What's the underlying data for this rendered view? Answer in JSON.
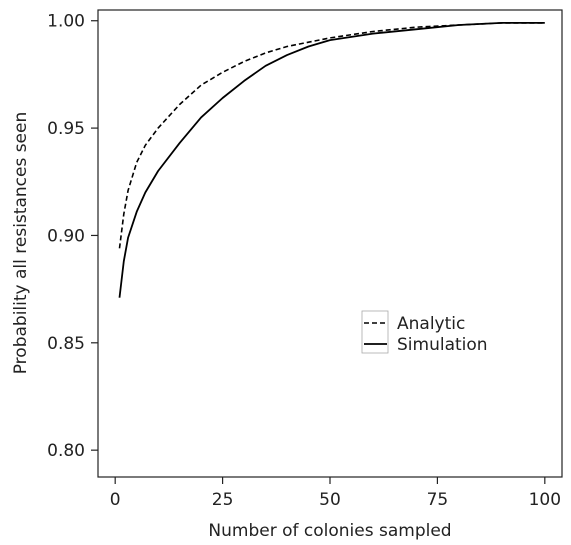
{
  "chart_data": {
    "type": "line",
    "title": "",
    "xlabel": "Number of colonies sampled",
    "ylabel": "Probability all resistances seen",
    "xlim": [
      -4,
      104
    ],
    "ylim": [
      0.7875,
      1.005
    ],
    "xticks": [
      0,
      25,
      50,
      75,
      100
    ],
    "xtick_labels": [
      "0",
      "25",
      "50",
      "75",
      "100"
    ],
    "yticks": [
      0.8,
      0.85,
      0.9,
      0.95,
      1.0
    ],
    "ytick_labels": [
      "0.80",
      "0.85",
      "0.90",
      "0.95",
      "1.00"
    ],
    "grid": false,
    "legend": {
      "position": "center-right",
      "entries": [
        "Analytic",
        "Simulation"
      ]
    },
    "series": [
      {
        "name": "Analytic",
        "style": "dashed",
        "color": "#000000",
        "x": [
          1,
          2,
          3,
          5,
          7,
          10,
          15,
          20,
          25,
          30,
          35,
          40,
          45,
          50,
          60,
          70,
          80,
          90,
          100
        ],
        "y": [
          0.894,
          0.91,
          0.921,
          0.934,
          0.942,
          0.95,
          0.961,
          0.97,
          0.976,
          0.981,
          0.985,
          0.988,
          0.99,
          0.992,
          0.995,
          0.997,
          0.998,
          0.999,
          0.999
        ]
      },
      {
        "name": "Simulation",
        "style": "solid",
        "color": "#000000",
        "x": [
          1,
          2,
          3,
          5,
          7,
          10,
          15,
          20,
          25,
          30,
          35,
          40,
          45,
          50,
          60,
          70,
          80,
          90,
          100
        ],
        "y": [
          0.871,
          0.888,
          0.899,
          0.911,
          0.92,
          0.93,
          0.943,
          0.955,
          0.964,
          0.972,
          0.979,
          0.984,
          0.988,
          0.991,
          0.994,
          0.996,
          0.998,
          0.999,
          0.999
        ]
      }
    ]
  }
}
